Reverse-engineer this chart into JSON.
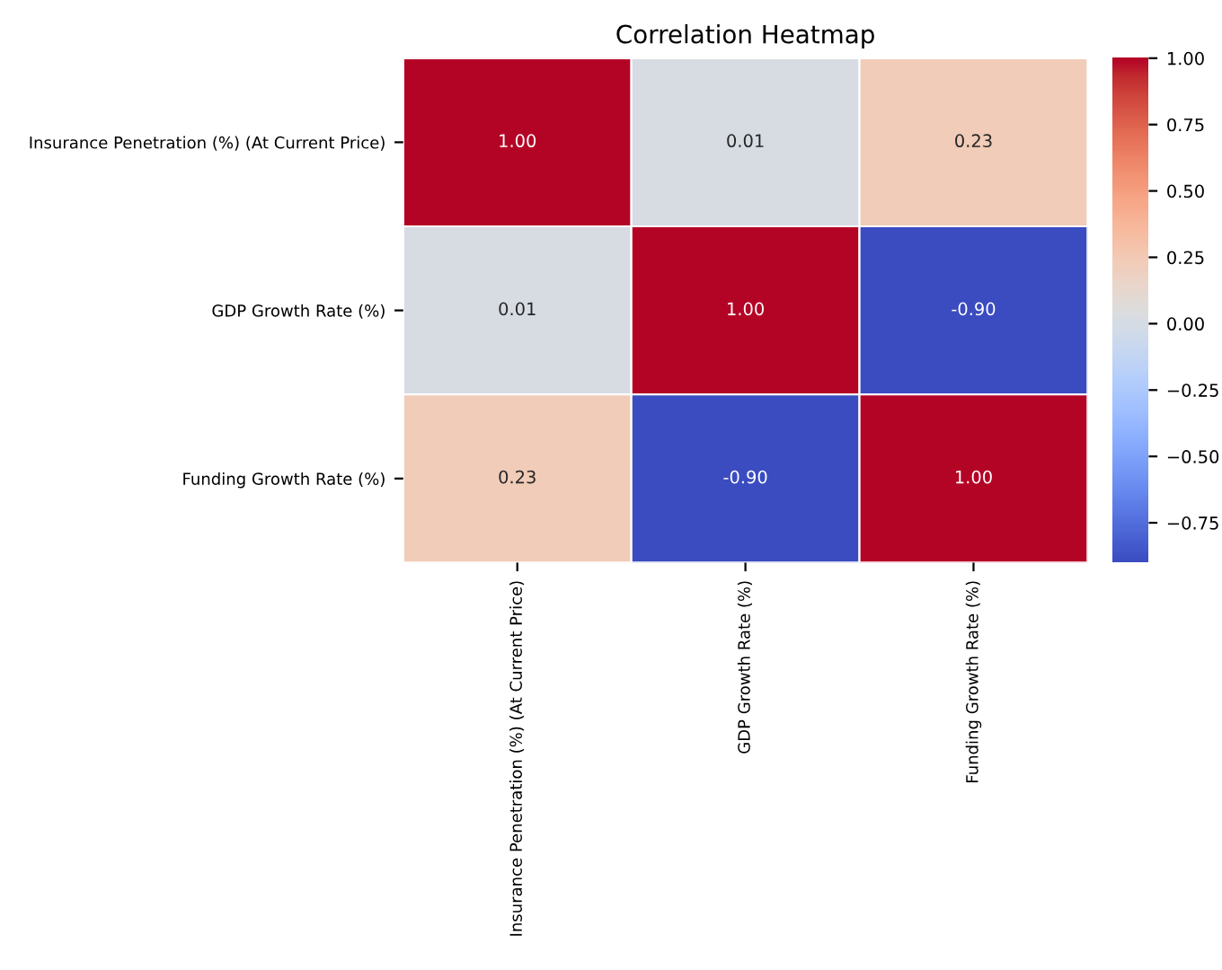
{
  "chart_data": {
    "type": "heatmap",
    "title": "Correlation Heatmap",
    "categories": [
      "Insurance Penetration (%) (At Current Price)",
      "GDP Growth Rate (%)",
      "Funding Growth Rate (%)"
    ],
    "y_categories": [
      "Insurance Penetration (%) (At Current Price)",
      "GDP Growth Rate (%)",
      "Funding Growth Rate (%)"
    ],
    "cells": [
      [
        1.0,
        0.01,
        0.23
      ],
      [
        0.01,
        1.0,
        -0.9
      ],
      [
        0.23,
        -0.9,
        1.0
      ]
    ],
    "cell_labels": [
      [
        "1.00",
        "0.01",
        "0.23"
      ],
      [
        "0.01",
        "1.00",
        "-0.90"
      ],
      [
        "0.23",
        "-0.90",
        "1.00"
      ]
    ],
    "clim": [
      -0.9,
      1.0
    ],
    "cticks": [
      {
        "value": -0.75,
        "label": "−0.75"
      },
      {
        "value": -0.5,
        "label": "−0.50"
      },
      {
        "value": -0.25,
        "label": "−0.25"
      },
      {
        "value": 0,
        "label": "0.00"
      },
      {
        "value": 0.25,
        "label": "0.25"
      },
      {
        "value": 0.5,
        "label": "0.50"
      },
      {
        "value": 0.75,
        "label": "0.75"
      },
      {
        "value": 1.0,
        "label": "1.00"
      }
    ]
  }
}
